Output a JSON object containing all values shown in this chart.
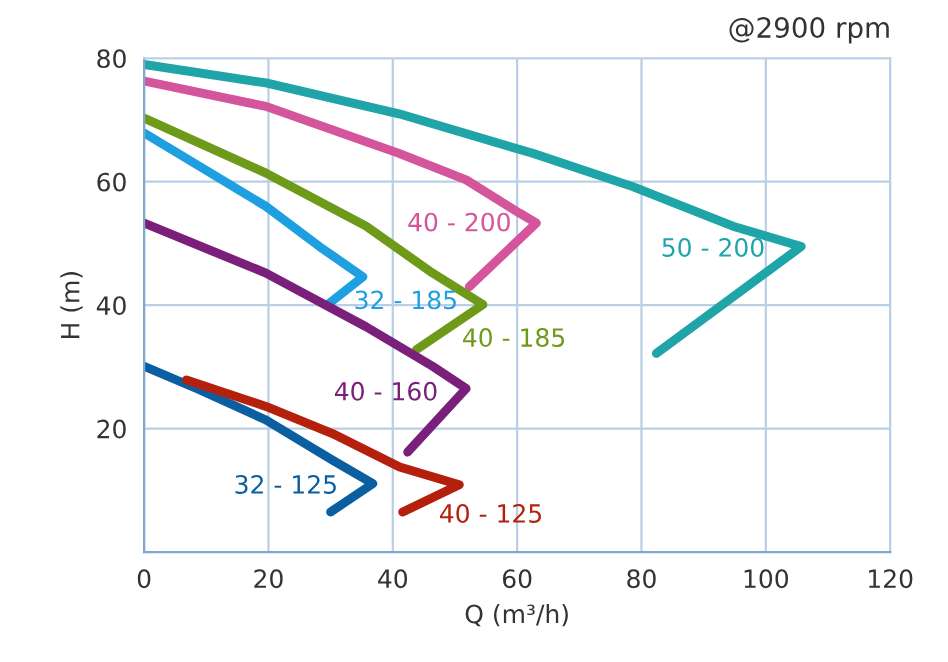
{
  "chart_data": {
    "type": "line",
    "title": "@2900 rpm",
    "xlabel": "Q (m³/h)",
    "ylabel": "H (m)",
    "xlim": [
      0,
      120
    ],
    "ylim": [
      0,
      80
    ],
    "xticks": [
      0,
      20,
      40,
      60,
      80,
      100,
      120
    ],
    "yticks": [
      {
        "value": 0,
        "label": null
      },
      20,
      40,
      60,
      80
    ],
    "grid": true,
    "legend": false,
    "marker": "none",
    "line_style": "solid",
    "series": [
      {
        "name": "50 - 200",
        "color": "#1fa5a8",
        "x": [
          0,
          19.6,
          41,
          62.5,
          78.6,
          94.7,
          105.7,
          82.4
        ],
        "values": [
          79,
          76,
          71,
          64.6,
          59.2,
          52.8,
          49.5,
          32.2
        ]
      },
      {
        "name": "40 - 200",
        "color": "#d4559c",
        "x": [
          0,
          19.6,
          41,
          51.8,
          60.4,
          63.1,
          52.3
        ],
        "values": [
          76.3,
          72.2,
          64.6,
          60.3,
          54.9,
          53.3,
          43
        ]
      },
      {
        "name": "32 - 185",
        "color": "#1ea0e0",
        "x": [
          0,
          8.9,
          19.6,
          28.2,
          35.2,
          29.8
        ],
        "values": [
          67.9,
          62.5,
          56,
          49.5,
          44.6,
          40.3
        ]
      },
      {
        "name": "40 - 185",
        "color": "#6e9a1a",
        "x": [
          0,
          19.6,
          35.7,
          46.4,
          54.5,
          43.8
        ],
        "values": [
          70.3,
          61.4,
          52.8,
          45.2,
          40.1,
          32.8
        ]
      },
      {
        "name": "40 - 160",
        "color": "#7a1f7a",
        "x": [
          0,
          19.6,
          35.7,
          46.4,
          51.8,
          42.4
        ],
        "values": [
          53.3,
          45.2,
          36.5,
          30.1,
          26.5,
          16.2
        ]
      },
      {
        "name": "32 - 125",
        "color": "#0b5fa0",
        "x": [
          0,
          8.9,
          19.6,
          30.3,
          36.8,
          30
        ],
        "values": [
          30.1,
          26.3,
          21.4,
          14.9,
          11.1,
          6.5
        ]
      },
      {
        "name": "40 - 125",
        "color": "#b5200c",
        "x": [
          6.8,
          19.6,
          30.3,
          41.1,
          50.7,
          41.6
        ],
        "values": [
          27.9,
          23.6,
          19.2,
          13.8,
          10.9,
          6.5
        ]
      }
    ]
  }
}
